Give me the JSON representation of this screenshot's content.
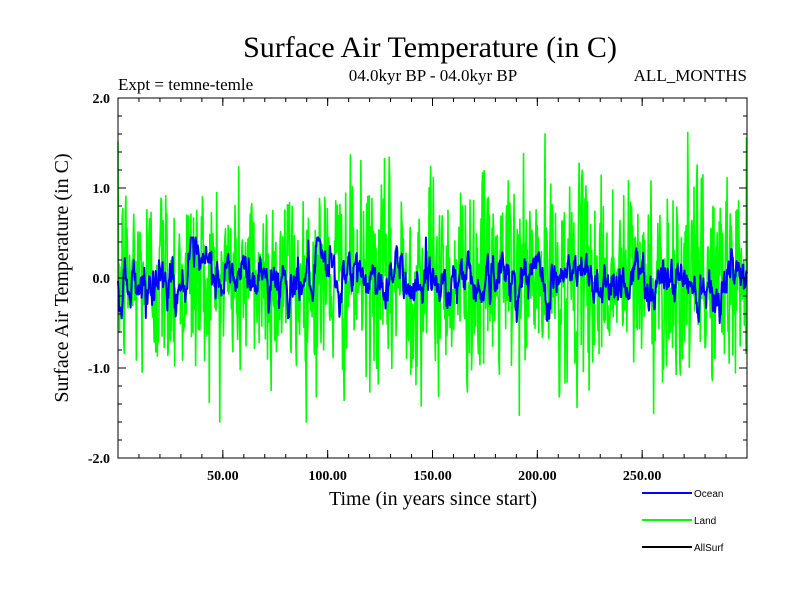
{
  "chart_data": {
    "type": "line",
    "title": "Surface Air Temperature (in C)",
    "subtitle_left": "Expt = temne-temle",
    "subtitle_center": "04.0kyr BP - 04.0kyr BP",
    "subtitle_right": "ALL_MONTHS",
    "xlabel": "Time (in years since start)",
    "ylabel": "Surface Air Temperature (in C)",
    "xlim": [
      0,
      300
    ],
    "ylim": [
      -2.0,
      2.0
    ],
    "x_ticks": [
      50,
      100,
      150,
      200,
      250
    ],
    "x_tick_labels": [
      "50.00",
      "100.00",
      "150.00",
      "200.00",
      "250.00"
    ],
    "y_ticks": [
      2.0,
      1.0,
      0.0,
      -1.0,
      -2.0
    ],
    "y_tick_labels": [
      "2.0",
      "1.0",
      "0.0",
      "-1.0",
      "-2.0"
    ],
    "grid": false,
    "legend_position": "bottom-right",
    "series": [
      {
        "name": "Land",
        "color": "#00ff00",
        "std": 0.55,
        "ar": 0.1,
        "min": -1.6,
        "max": 1.65
      },
      {
        "name": "Ocean",
        "color": "#0000ff",
        "std": 0.17,
        "ar": 0.8,
        "min": -0.5,
        "max": 0.45
      },
      {
        "name": "AllSurf",
        "color": "#000000"
      }
    ],
    "n_points": 1200
  }
}
